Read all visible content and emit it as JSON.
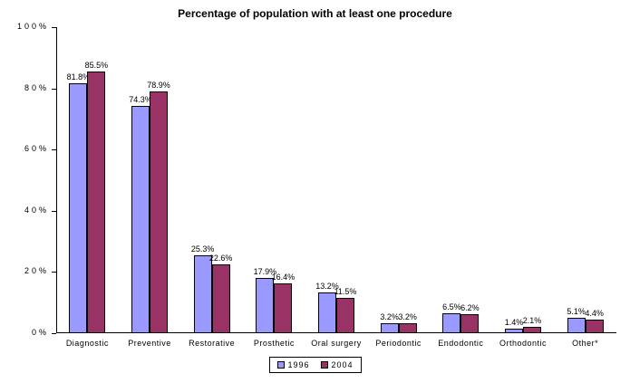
{
  "chart_data": {
    "type": "bar",
    "title": "Percentage of population with at least one procedure",
    "xlabel": "",
    "ylabel": "",
    "categories": [
      "Diagnostic",
      "Preventive",
      "Restorative",
      "Prosthetic",
      "Oral surgery",
      "Periodontic",
      "Endodontic",
      "Orthodontic",
      "Other*"
    ],
    "series": [
      {
        "name": "1996",
        "color": "#9999FF",
        "values": [
          81.8,
          74.3,
          25.3,
          17.9,
          13.2,
          3.2,
          6.5,
          1.4,
          5.1
        ]
      },
      {
        "name": "2004",
        "color": "#993366",
        "values": [
          85.5,
          78.9,
          22.6,
          16.4,
          11.5,
          3.2,
          6.2,
          2.1,
          4.4
        ]
      }
    ],
    "ylim": [
      0,
      100
    ],
    "yticks": [
      0,
      20,
      40,
      60,
      80,
      100
    ],
    "ytick_labels": [
      "0%",
      "20%",
      "40%",
      "60%",
      "80%",
      "100%"
    ],
    "grid": false,
    "legend_position": "bottom",
    "value_label_suffix": "%",
    "bar_border_color": "#000000",
    "background_color": "#FFFFFF"
  }
}
